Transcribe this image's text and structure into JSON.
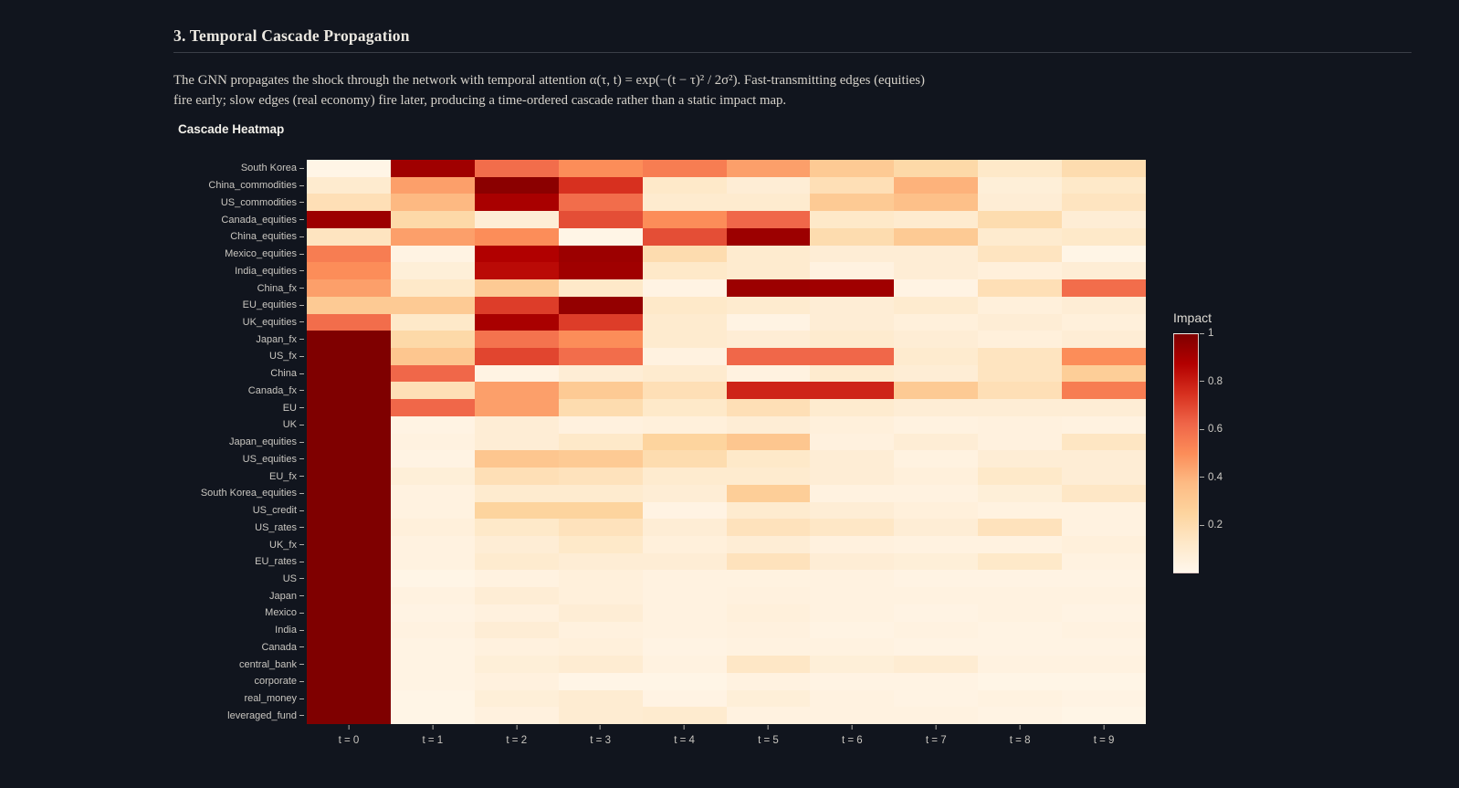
{
  "page": {
    "section_title": "3. Temporal Cascade Propagation",
    "description_lines": [
      "The GNN propagates the shock through the network with temporal attention α(τ, t) = exp(−(t − τ)² / 2σ²). Fast-transmitting edges (equities)",
      "fire early; slow edges (real economy) fire later, producing a time-ordered cascade rather than a static impact map."
    ],
    "chart_label": "Cascade Heatmap",
    "colors": {
      "background": "#11151e",
      "heading_text": "#eae7e0",
      "body_text": "#d6d2ca",
      "axis_text": "#c9c6c0",
      "divider": "#3a3e47"
    }
  },
  "chart_data": {
    "type": "heatmap",
    "title": "Cascade Heatmap",
    "x_labels": [
      "t = 0",
      "t = 1",
      "t = 2",
      "t = 3",
      "t = 4",
      "t = 5",
      "t = 6",
      "t = 7",
      "t = 8",
      "t = 9"
    ],
    "y_labels": [
      "South Korea",
      "China_commodities",
      "US_commodities",
      "Canada_equities",
      "China_equities",
      "Mexico_equities",
      "India_equities",
      "China_fx",
      "EU_equities",
      "UK_equities",
      "Japan_fx",
      "US_fx",
      "China",
      "Canada_fx",
      "EU",
      "UK",
      "Japan_equities",
      "US_equities",
      "EU_fx",
      "South Korea_equities",
      "US_credit",
      "US_rates",
      "UK_fx",
      "EU_rates",
      "US",
      "Japan",
      "Mexico",
      "India",
      "Canada",
      "central_bank",
      "corporate",
      "real_money",
      "leveraged_fund"
    ],
    "zmin": 0,
    "zmax": 1,
    "z": [
      [
        0.02,
        0.92,
        0.6,
        0.5,
        0.55,
        0.45,
        0.3,
        0.22,
        0.12,
        0.2
      ],
      [
        0.1,
        0.45,
        0.97,
        0.75,
        0.12,
        0.08,
        0.18,
        0.4,
        0.07,
        0.12
      ],
      [
        0.18,
        0.38,
        0.9,
        0.6,
        0.1,
        0.1,
        0.3,
        0.35,
        0.08,
        0.15
      ],
      [
        0.93,
        0.22,
        0.08,
        0.68,
        0.5,
        0.62,
        0.12,
        0.1,
        0.2,
        0.08
      ],
      [
        0.15,
        0.45,
        0.5,
        0.02,
        0.68,
        0.93,
        0.2,
        0.3,
        0.1,
        0.12
      ],
      [
        0.55,
        0.03,
        0.88,
        0.93,
        0.2,
        0.1,
        0.08,
        0.08,
        0.15,
        0.02
      ],
      [
        0.5,
        0.07,
        0.85,
        0.92,
        0.12,
        0.1,
        0.04,
        0.08,
        0.06,
        0.08
      ],
      [
        0.45,
        0.12,
        0.3,
        0.12,
        0.03,
        0.93,
        0.92,
        0.03,
        0.18,
        0.6
      ],
      [
        0.3,
        0.3,
        0.72,
        0.95,
        0.12,
        0.1,
        0.08,
        0.1,
        0.06,
        0.08
      ],
      [
        0.6,
        0.12,
        0.9,
        0.72,
        0.1,
        0.03,
        0.08,
        0.06,
        0.08,
        0.06
      ],
      [
        1.0,
        0.22,
        0.58,
        0.5,
        0.1,
        0.08,
        0.1,
        0.08,
        0.06,
        0.08
      ],
      [
        1.0,
        0.32,
        0.7,
        0.6,
        0.04,
        0.62,
        0.62,
        0.1,
        0.15,
        0.5
      ],
      [
        1.0,
        0.62,
        0.03,
        0.08,
        0.1,
        0.04,
        0.1,
        0.08,
        0.15,
        0.28
      ],
      [
        1.0,
        0.18,
        0.45,
        0.3,
        0.18,
        0.78,
        0.78,
        0.3,
        0.18,
        0.55
      ],
      [
        1.0,
        0.62,
        0.45,
        0.2,
        0.12,
        0.18,
        0.1,
        0.08,
        0.08,
        0.08
      ],
      [
        1.0,
        0.03,
        0.08,
        0.05,
        0.06,
        0.08,
        0.06,
        0.04,
        0.05,
        0.04
      ],
      [
        1.0,
        0.04,
        0.08,
        0.12,
        0.25,
        0.32,
        0.05,
        0.08,
        0.05,
        0.14
      ],
      [
        1.0,
        0.03,
        0.32,
        0.3,
        0.2,
        0.12,
        0.08,
        0.04,
        0.08,
        0.08
      ],
      [
        1.0,
        0.07,
        0.18,
        0.16,
        0.1,
        0.1,
        0.08,
        0.06,
        0.12,
        0.08
      ],
      [
        1.0,
        0.04,
        0.1,
        0.1,
        0.08,
        0.28,
        0.04,
        0.04,
        0.07,
        0.13
      ],
      [
        1.0,
        0.04,
        0.25,
        0.25,
        0.03,
        0.1,
        0.08,
        0.06,
        0.04,
        0.04
      ],
      [
        1.0,
        0.06,
        0.12,
        0.16,
        0.08,
        0.16,
        0.13,
        0.08,
        0.16,
        0.04
      ],
      [
        1.0,
        0.04,
        0.08,
        0.12,
        0.06,
        0.08,
        0.05,
        0.04,
        0.04,
        0.06
      ],
      [
        1.0,
        0.04,
        0.1,
        0.08,
        0.08,
        0.16,
        0.08,
        0.07,
        0.12,
        0.04
      ],
      [
        1.0,
        0.02,
        0.04,
        0.06,
        0.04,
        0.04,
        0.04,
        0.03,
        0.03,
        0.03
      ],
      [
        1.0,
        0.04,
        0.08,
        0.06,
        0.04,
        0.05,
        0.04,
        0.04,
        0.04,
        0.04
      ],
      [
        1.0,
        0.03,
        0.05,
        0.08,
        0.04,
        0.06,
        0.04,
        0.03,
        0.04,
        0.03
      ],
      [
        1.0,
        0.04,
        0.08,
        0.05,
        0.04,
        0.05,
        0.03,
        0.04,
        0.03,
        0.04
      ],
      [
        1.0,
        0.03,
        0.05,
        0.06,
        0.03,
        0.04,
        0.04,
        0.03,
        0.03,
        0.03
      ],
      [
        1.0,
        0.03,
        0.07,
        0.09,
        0.04,
        0.13,
        0.07,
        0.09,
        0.04,
        0.04
      ],
      [
        1.0,
        0.03,
        0.05,
        0.02,
        0.02,
        0.04,
        0.03,
        0.03,
        0.02,
        0.02
      ],
      [
        1.0,
        0.02,
        0.07,
        0.09,
        0.03,
        0.07,
        0.04,
        0.03,
        0.04,
        0.03
      ],
      [
        1.0,
        0.02,
        0.05,
        0.09,
        0.1,
        0.04,
        0.04,
        0.04,
        0.03,
        0.02
      ]
    ],
    "colorscale": [
      [
        0.0,
        "#fff7ec"
      ],
      [
        0.125,
        "#fee8c8"
      ],
      [
        0.25,
        "#fdd49e"
      ],
      [
        0.375,
        "#fdbb84"
      ],
      [
        0.5,
        "#fc8d59"
      ],
      [
        0.625,
        "#ef6548"
      ],
      [
        0.75,
        "#d7301f"
      ],
      [
        0.875,
        "#b30000"
      ],
      [
        1.0,
        "#7f0000"
      ]
    ],
    "colorbar": {
      "title": "Impact",
      "ticks": [
        "1",
        "0.8",
        "0.6",
        "0.4",
        "0.2"
      ],
      "tick_values": [
        1,
        0.8,
        0.6,
        0.4,
        0.2
      ]
    },
    "legend_position": "right",
    "grid": false
  }
}
